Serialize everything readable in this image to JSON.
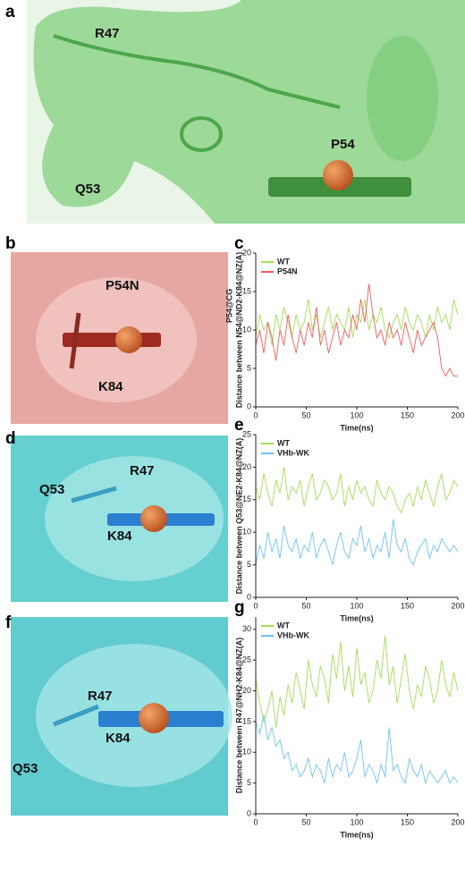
{
  "panels": {
    "a": {
      "letter": "a",
      "labels": [
        "R47",
        "Q53",
        "P54"
      ]
    },
    "b": {
      "letter": "b",
      "labels": [
        "P54N",
        "K84"
      ]
    },
    "d": {
      "letter": "d",
      "labels": [
        "R47",
        "Q53",
        "K84"
      ]
    },
    "f": {
      "letter": "f",
      "labels": [
        "R47",
        "Q53",
        "K84"
      ]
    }
  },
  "chart_data": [
    {
      "type": "line",
      "panel": "c",
      "xlabel": "Time(ns)",
      "ylabel": [
        "P54@CG",
        "Distance between N54@ND2-K84@NZ(A)"
      ],
      "xlim": [
        0,
        200
      ],
      "xticks": [
        0,
        50,
        100,
        150,
        200
      ],
      "ylim": [
        0,
        20
      ],
      "yticks": [
        0,
        5,
        10,
        15,
        20
      ],
      "legend": "upper left",
      "x": [
        0,
        4,
        8,
        12,
        16,
        20,
        24,
        28,
        32,
        36,
        40,
        44,
        48,
        52,
        56,
        60,
        64,
        68,
        72,
        76,
        80,
        84,
        88,
        92,
        96,
        100,
        104,
        108,
        112,
        116,
        120,
        124,
        128,
        132,
        136,
        140,
        144,
        148,
        152,
        156,
        160,
        164,
        168,
        172,
        176,
        180,
        184,
        188,
        192,
        196,
        200
      ],
      "series": [
        {
          "name": "WT",
          "color": "#a3dd57",
          "values": [
            9,
            12,
            10,
            11,
            8,
            12,
            10,
            13,
            11,
            9,
            12,
            10,
            11,
            14,
            10,
            12,
            9,
            11,
            13,
            10,
            12,
            11,
            10,
            13,
            9,
            12,
            11,
            14,
            10,
            12,
            11,
            13,
            10,
            9,
            11,
            12,
            10,
            13,
            11,
            10,
            12,
            11,
            9,
            12,
            10,
            13,
            11,
            12,
            10,
            14,
            12
          ]
        },
        {
          "name": "P54N",
          "color": "#ef5b5b",
          "values": [
            8,
            10,
            7,
            11,
            9,
            6,
            10,
            8,
            12,
            9,
            7,
            10,
            8,
            11,
            9,
            13,
            8,
            10,
            7,
            9,
            11,
            8,
            10,
            9,
            12,
            10,
            14,
            11,
            16,
            12,
            9,
            10,
            8,
            11,
            9,
            10,
            8,
            11,
            9,
            7,
            10,
            8,
            9,
            10,
            11,
            9,
            5,
            4,
            5,
            4,
            4
          ]
        }
      ]
    },
    {
      "type": "line",
      "panel": "e",
      "xlabel": "Time(ns)",
      "ylabel": [
        "Distance between Q53@NE2-K84@NZ(A)"
      ],
      "xlim": [
        0,
        200
      ],
      "xticks": [
        0,
        50,
        100,
        150,
        200
      ],
      "ylim": [
        0,
        25
      ],
      "yticks": [
        0,
        5,
        10,
        15,
        20,
        25
      ],
      "legend": "upper left",
      "x": [
        0,
        4,
        8,
        12,
        16,
        20,
        24,
        28,
        32,
        36,
        40,
        44,
        48,
        52,
        56,
        60,
        64,
        68,
        72,
        76,
        80,
        84,
        88,
        92,
        96,
        100,
        104,
        108,
        112,
        116,
        120,
        124,
        128,
        132,
        136,
        140,
        144,
        148,
        152,
        156,
        160,
        164,
        168,
        172,
        176,
        180,
        184,
        188,
        192,
        196,
        200
      ],
      "series": [
        {
          "name": "WT",
          "color": "#a3dd57",
          "values": [
            17,
            15,
            19,
            16,
            14,
            18,
            16,
            20,
            15,
            17,
            16,
            18,
            14,
            17,
            19,
            15,
            16,
            18,
            17,
            15,
            16,
            19,
            14,
            17,
            15,
            18,
            16,
            17,
            15,
            14,
            18,
            16,
            15,
            17,
            16,
            14,
            13,
            15,
            16,
            14,
            17,
            15,
            18,
            16,
            14,
            17,
            19,
            15,
            16,
            18,
            17
          ]
        },
        {
          "name": "VHb-WK",
          "color": "#6ec3f2",
          "values": [
            5,
            8,
            6,
            10,
            7,
            9,
            6,
            11,
            8,
            7,
            9,
            6,
            8,
            7,
            10,
            6,
            8,
            9,
            7,
            5,
            8,
            10,
            7,
            6,
            9,
            8,
            11,
            7,
            9,
            6,
            8,
            7,
            10,
            6,
            12,
            8,
            7,
            9,
            6,
            5,
            7,
            8,
            9,
            6,
            8,
            7,
            9,
            8,
            7,
            8,
            7
          ]
        }
      ]
    },
    {
      "type": "line",
      "panel": "g",
      "xlabel": "Time(ns)",
      "ylabel": [
        "Distance between R47@NH2-K84@NZ(A)"
      ],
      "xlim": [
        0,
        200
      ],
      "xticks": [
        0,
        50,
        100,
        150,
        200
      ],
      "ylim": [
        0,
        32
      ],
      "yticks": [
        0,
        5,
        10,
        15,
        20,
        25,
        30
      ],
      "legend": "upper left",
      "x": [
        0,
        4,
        8,
        12,
        16,
        20,
        24,
        28,
        32,
        36,
        40,
        44,
        48,
        52,
        56,
        60,
        64,
        68,
        72,
        76,
        80,
        84,
        88,
        92,
        96,
        100,
        104,
        108,
        112,
        116,
        120,
        124,
        128,
        132,
        136,
        140,
        144,
        148,
        152,
        156,
        160,
        164,
        168,
        172,
        176,
        180,
        184,
        188,
        192,
        196,
        200
      ],
      "series": [
        {
          "name": "WT",
          "color": "#a3dd57",
          "values": [
            22,
            18,
            15,
            17,
            20,
            14,
            19,
            16,
            21,
            18,
            23,
            20,
            17,
            25,
            21,
            19,
            24,
            22,
            18,
            26,
            22,
            28,
            20,
            24,
            19,
            27,
            21,
            23,
            18,
            20,
            25,
            22,
            29,
            21,
            24,
            18,
            22,
            26,
            20,
            17,
            21,
            19,
            24,
            22,
            18,
            20,
            25,
            21,
            19,
            23,
            20
          ]
        },
        {
          "name": "VHb-WK",
          "color": "#6ec3f2",
          "values": [
            15,
            13,
            16,
            12,
            14,
            11,
            12,
            9,
            10,
            7,
            8,
            6,
            7,
            9,
            6,
            8,
            7,
            5,
            9,
            6,
            8,
            7,
            10,
            6,
            7,
            9,
            12,
            6,
            8,
            7,
            5,
            8,
            6,
            14,
            7,
            8,
            6,
            5,
            9,
            7,
            6,
            8,
            5,
            7,
            6,
            5,
            6,
            7,
            5,
            6,
            5
          ]
        }
      ]
    }
  ]
}
